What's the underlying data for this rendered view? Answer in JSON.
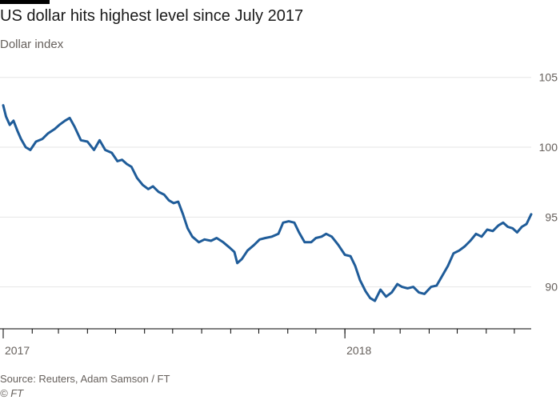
{
  "header": {
    "title": "US dollar hits highest level since July 2017",
    "subtitle": "Dollar index"
  },
  "footer": {
    "source": "Source: Reuters, Adam Samson / FT",
    "copyright": "© FT"
  },
  "colors": {
    "line": "#1f5c99",
    "grid": "#e6e6e6",
    "axis": "#000000",
    "text": "#66605c",
    "brand_bar": "#000000"
  },
  "chart_data": {
    "type": "line",
    "title": "US dollar hits highest level since July 2017",
    "subtitle": "Dollar index",
    "xlabel": "",
    "ylabel": "",
    "ylim": [
      87,
      105.5
    ],
    "xlim": [
      "2017-01-01",
      "2018-07-19"
    ],
    "grid": true,
    "y_ticks": [
      90,
      95,
      100,
      105
    ],
    "y_tick_labels": [
      "90",
      "95",
      "100",
      "105"
    ],
    "x_ticks": [
      "2017-01-01",
      "2018-01-01"
    ],
    "x_tick_labels": [
      "2017",
      "2018"
    ],
    "series": [
      {
        "name": "",
        "x": [
          "2017-01-01",
          "2017-01-04",
          "2017-01-08",
          "2017-01-12",
          "2017-01-16",
          "2017-01-20",
          "2017-01-25",
          "2017-01-30",
          "2017-02-05",
          "2017-02-12",
          "2017-02-18",
          "2017-02-25",
          "2017-03-02",
          "2017-03-08",
          "2017-03-13",
          "2017-03-18",
          "2017-03-25",
          "2017-04-01",
          "2017-04-08",
          "2017-04-14",
          "2017-04-20",
          "2017-04-27",
          "2017-05-03",
          "2017-05-08",
          "2017-05-13",
          "2017-05-18",
          "2017-05-24",
          "2017-05-30",
          "2017-06-05",
          "2017-06-10",
          "2017-06-16",
          "2017-06-22",
          "2017-06-27",
          "2017-07-02",
          "2017-07-07",
          "2017-07-12",
          "2017-07-17",
          "2017-07-22",
          "2017-07-29",
          "2017-08-04",
          "2017-08-11",
          "2017-08-17",
          "2017-08-24",
          "2017-08-31",
          "2017-09-05",
          "2017-09-08",
          "2017-09-13",
          "2017-09-19",
          "2017-09-26",
          "2017-10-02",
          "2017-10-08",
          "2017-10-15",
          "2017-10-22",
          "2017-10-27",
          "2017-11-02",
          "2017-11-08",
          "2017-11-13",
          "2017-11-19",
          "2017-11-26",
          "2017-12-01",
          "2017-12-07",
          "2017-12-12",
          "2017-12-18",
          "2017-12-25",
          "2018-01-01",
          "2018-01-07",
          "2018-01-12",
          "2018-01-17",
          "2018-01-23",
          "2018-01-28",
          "2018-02-02",
          "2018-02-08",
          "2018-02-14",
          "2018-02-20",
          "2018-02-26",
          "2018-03-03",
          "2018-03-09",
          "2018-03-15",
          "2018-03-21",
          "2018-03-27",
          "2018-04-03",
          "2018-04-09",
          "2018-04-15",
          "2018-04-21",
          "2018-04-27",
          "2018-05-03",
          "2018-05-09",
          "2018-05-15",
          "2018-05-21",
          "2018-05-27",
          "2018-06-02",
          "2018-06-08",
          "2018-06-14",
          "2018-06-19",
          "2018-06-24",
          "2018-06-29",
          "2018-07-04",
          "2018-07-09",
          "2018-07-14",
          "2018-07-19"
        ],
        "values": [
          103.0,
          102.2,
          101.6,
          101.9,
          101.2,
          100.6,
          100.0,
          99.8,
          100.4,
          100.6,
          101.0,
          101.3,
          101.6,
          101.9,
          102.1,
          101.5,
          100.5,
          100.4,
          99.8,
          100.5,
          99.8,
          99.6,
          99.0,
          99.1,
          98.8,
          98.6,
          97.8,
          97.3,
          97.0,
          97.2,
          96.8,
          96.6,
          96.2,
          96.0,
          96.1,
          95.2,
          94.2,
          93.6,
          93.2,
          93.4,
          93.3,
          93.5,
          93.2,
          92.8,
          92.5,
          91.7,
          92.0,
          92.6,
          93.0,
          93.4,
          93.5,
          93.6,
          93.8,
          94.6,
          94.7,
          94.6,
          93.9,
          93.2,
          93.2,
          93.5,
          93.6,
          93.8,
          93.6,
          93.0,
          92.3,
          92.2,
          91.5,
          90.5,
          89.7,
          89.2,
          89.0,
          89.8,
          89.3,
          89.6,
          90.2,
          90.0,
          89.9,
          90.0,
          89.6,
          89.5,
          90.0,
          90.1,
          90.8,
          91.5,
          92.4,
          92.6,
          92.9,
          93.3,
          93.8,
          93.6,
          94.1,
          94.0,
          94.4,
          94.6,
          94.3,
          94.2,
          93.9,
          94.3,
          94.5,
          95.2
        ]
      }
    ]
  }
}
